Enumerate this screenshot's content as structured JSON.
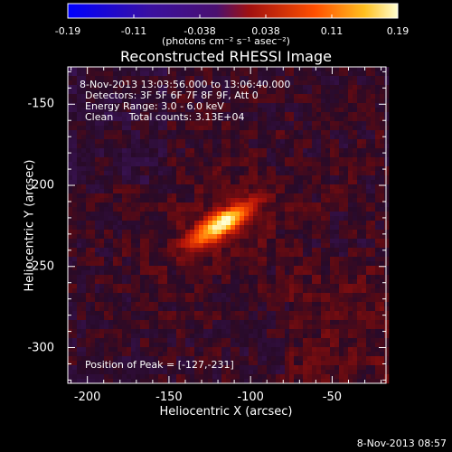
{
  "chart_data": {
    "type": "heatmap",
    "title": "Reconstructed RHESSI Image",
    "xlabel": "Heliocentric X (arcsec)",
    "ylabel": "Heliocentric Y (arcsec)",
    "xlim": [
      -212,
      -17
    ],
    "ylim": [
      -322,
      -127
    ],
    "x_ticks": [
      "-200",
      "-150",
      "-100",
      "-50"
    ],
    "x_tick_values": [
      -200,
      -150,
      -100,
      -50
    ],
    "y_ticks": [
      "-150",
      "-200",
      "-250",
      "-300"
    ],
    "y_tick_values": [
      -150,
      -200,
      -250,
      -300
    ],
    "colorbar": {
      "min": -0.19,
      "max": 0.19,
      "tick_labels": [
        "-0.19",
        "-0.11",
        "-0.038",
        "0.038",
        "0.11",
        "0.19"
      ],
      "units": "(photons cm⁻² s⁻¹ asec⁻²)"
    },
    "source": {
      "peak_x": -127,
      "peak_y": -231,
      "center_x": -118,
      "center_y": -224,
      "major_axis": 32,
      "minor_axis": 11,
      "position_angle_deg": 32,
      "peak_value": 0.19
    }
  },
  "info": {
    "time_range": "8-Nov-2013 13:03:56.000 to 13:06:40.000",
    "detectors": "Detectors: 3F 5F 6F 7F 8F 9F, Att 0",
    "energy": "Energy Range: 3.0 - 6.0 keV",
    "clean": "Clean     Total counts: 3.13E+04",
    "peak_position": "Position of Peak = [-127,-231]"
  },
  "timestamp": "8-Nov-2013 08:57"
}
